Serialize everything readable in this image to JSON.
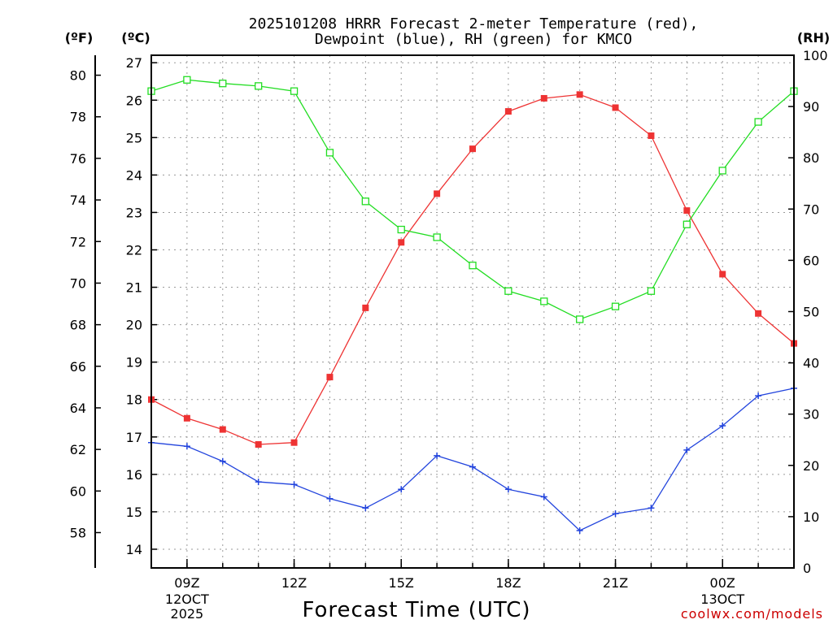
{
  "chart_data": {
    "type": "line",
    "title_line1": "2025101208 HRRR Forecast 2-meter Temperature (red),",
    "title_line2": "Dewpoint (blue), RH (green) for KMCO",
    "xlabel": "Forecast Time (UTC)",
    "credit": "coolwx.com/models",
    "unit_f": "(ºF)",
    "unit_c": "(ºC)",
    "unit_rh": "(RH)",
    "hours": [
      8,
      9,
      10,
      11,
      12,
      13,
      14,
      15,
      16,
      17,
      18,
      19,
      20,
      21,
      22,
      23,
      24,
      25,
      26
    ],
    "xlim": [
      8,
      26
    ],
    "ylim_c": [
      13.5,
      27.2
    ],
    "ylim_rh": [
      0,
      100
    ],
    "c_ticks": [
      14,
      15,
      16,
      17,
      18,
      19,
      20,
      21,
      22,
      23,
      24,
      25,
      26,
      27
    ],
    "f_ticks": [
      58,
      60,
      62,
      64,
      66,
      68,
      70,
      72,
      74,
      76,
      78,
      80
    ],
    "rh_ticks": [
      0,
      10,
      20,
      30,
      40,
      50,
      60,
      70,
      80,
      90,
      100
    ],
    "x_ticks": [
      {
        "hour": 9,
        "label": "09Z"
      },
      {
        "hour": 12,
        "label": "12Z"
      },
      {
        "hour": 15,
        "label": "15Z"
      },
      {
        "hour": 18,
        "label": "18Z"
      },
      {
        "hour": 21,
        "label": "21Z"
      },
      {
        "hour": 24,
        "label": "00Z"
      }
    ],
    "date_labels": [
      {
        "hour": 9,
        "line1": "12OCT",
        "line2": "2025"
      },
      {
        "hour": 24,
        "line1": "13OCT",
        "line2": ""
      }
    ],
    "series": [
      {
        "name": "2-meter Temperature",
        "axis": "c",
        "color": "#ee3333",
        "marker": "filled-square",
        "values": [
          18.0,
          17.5,
          17.2,
          16.8,
          16.85,
          18.6,
          20.45,
          22.2,
          23.5,
          24.7,
          25.7,
          26.05,
          26.15,
          25.8,
          25.05,
          23.05,
          21.35,
          20.3,
          19.5
        ]
      },
      {
        "name": "Dewpoint",
        "axis": "c",
        "color": "#2244dd",
        "marker": "plus",
        "values": [
          16.85,
          16.75,
          16.35,
          15.8,
          15.73,
          15.35,
          15.1,
          15.6,
          16.5,
          16.2,
          15.6,
          15.4,
          14.5,
          14.95,
          15.1,
          16.65,
          17.3,
          18.1,
          18.3
        ]
      },
      {
        "name": "Relative Humidity",
        "axis": "rh",
        "color": "#22dd22",
        "marker": "open-square",
        "values": [
          93,
          95.2,
          94.5,
          94,
          93,
          81,
          71.5,
          66,
          64.5,
          59,
          54,
          52,
          48.5,
          51,
          54,
          67,
          77.5,
          87,
          93
        ]
      }
    ]
  }
}
